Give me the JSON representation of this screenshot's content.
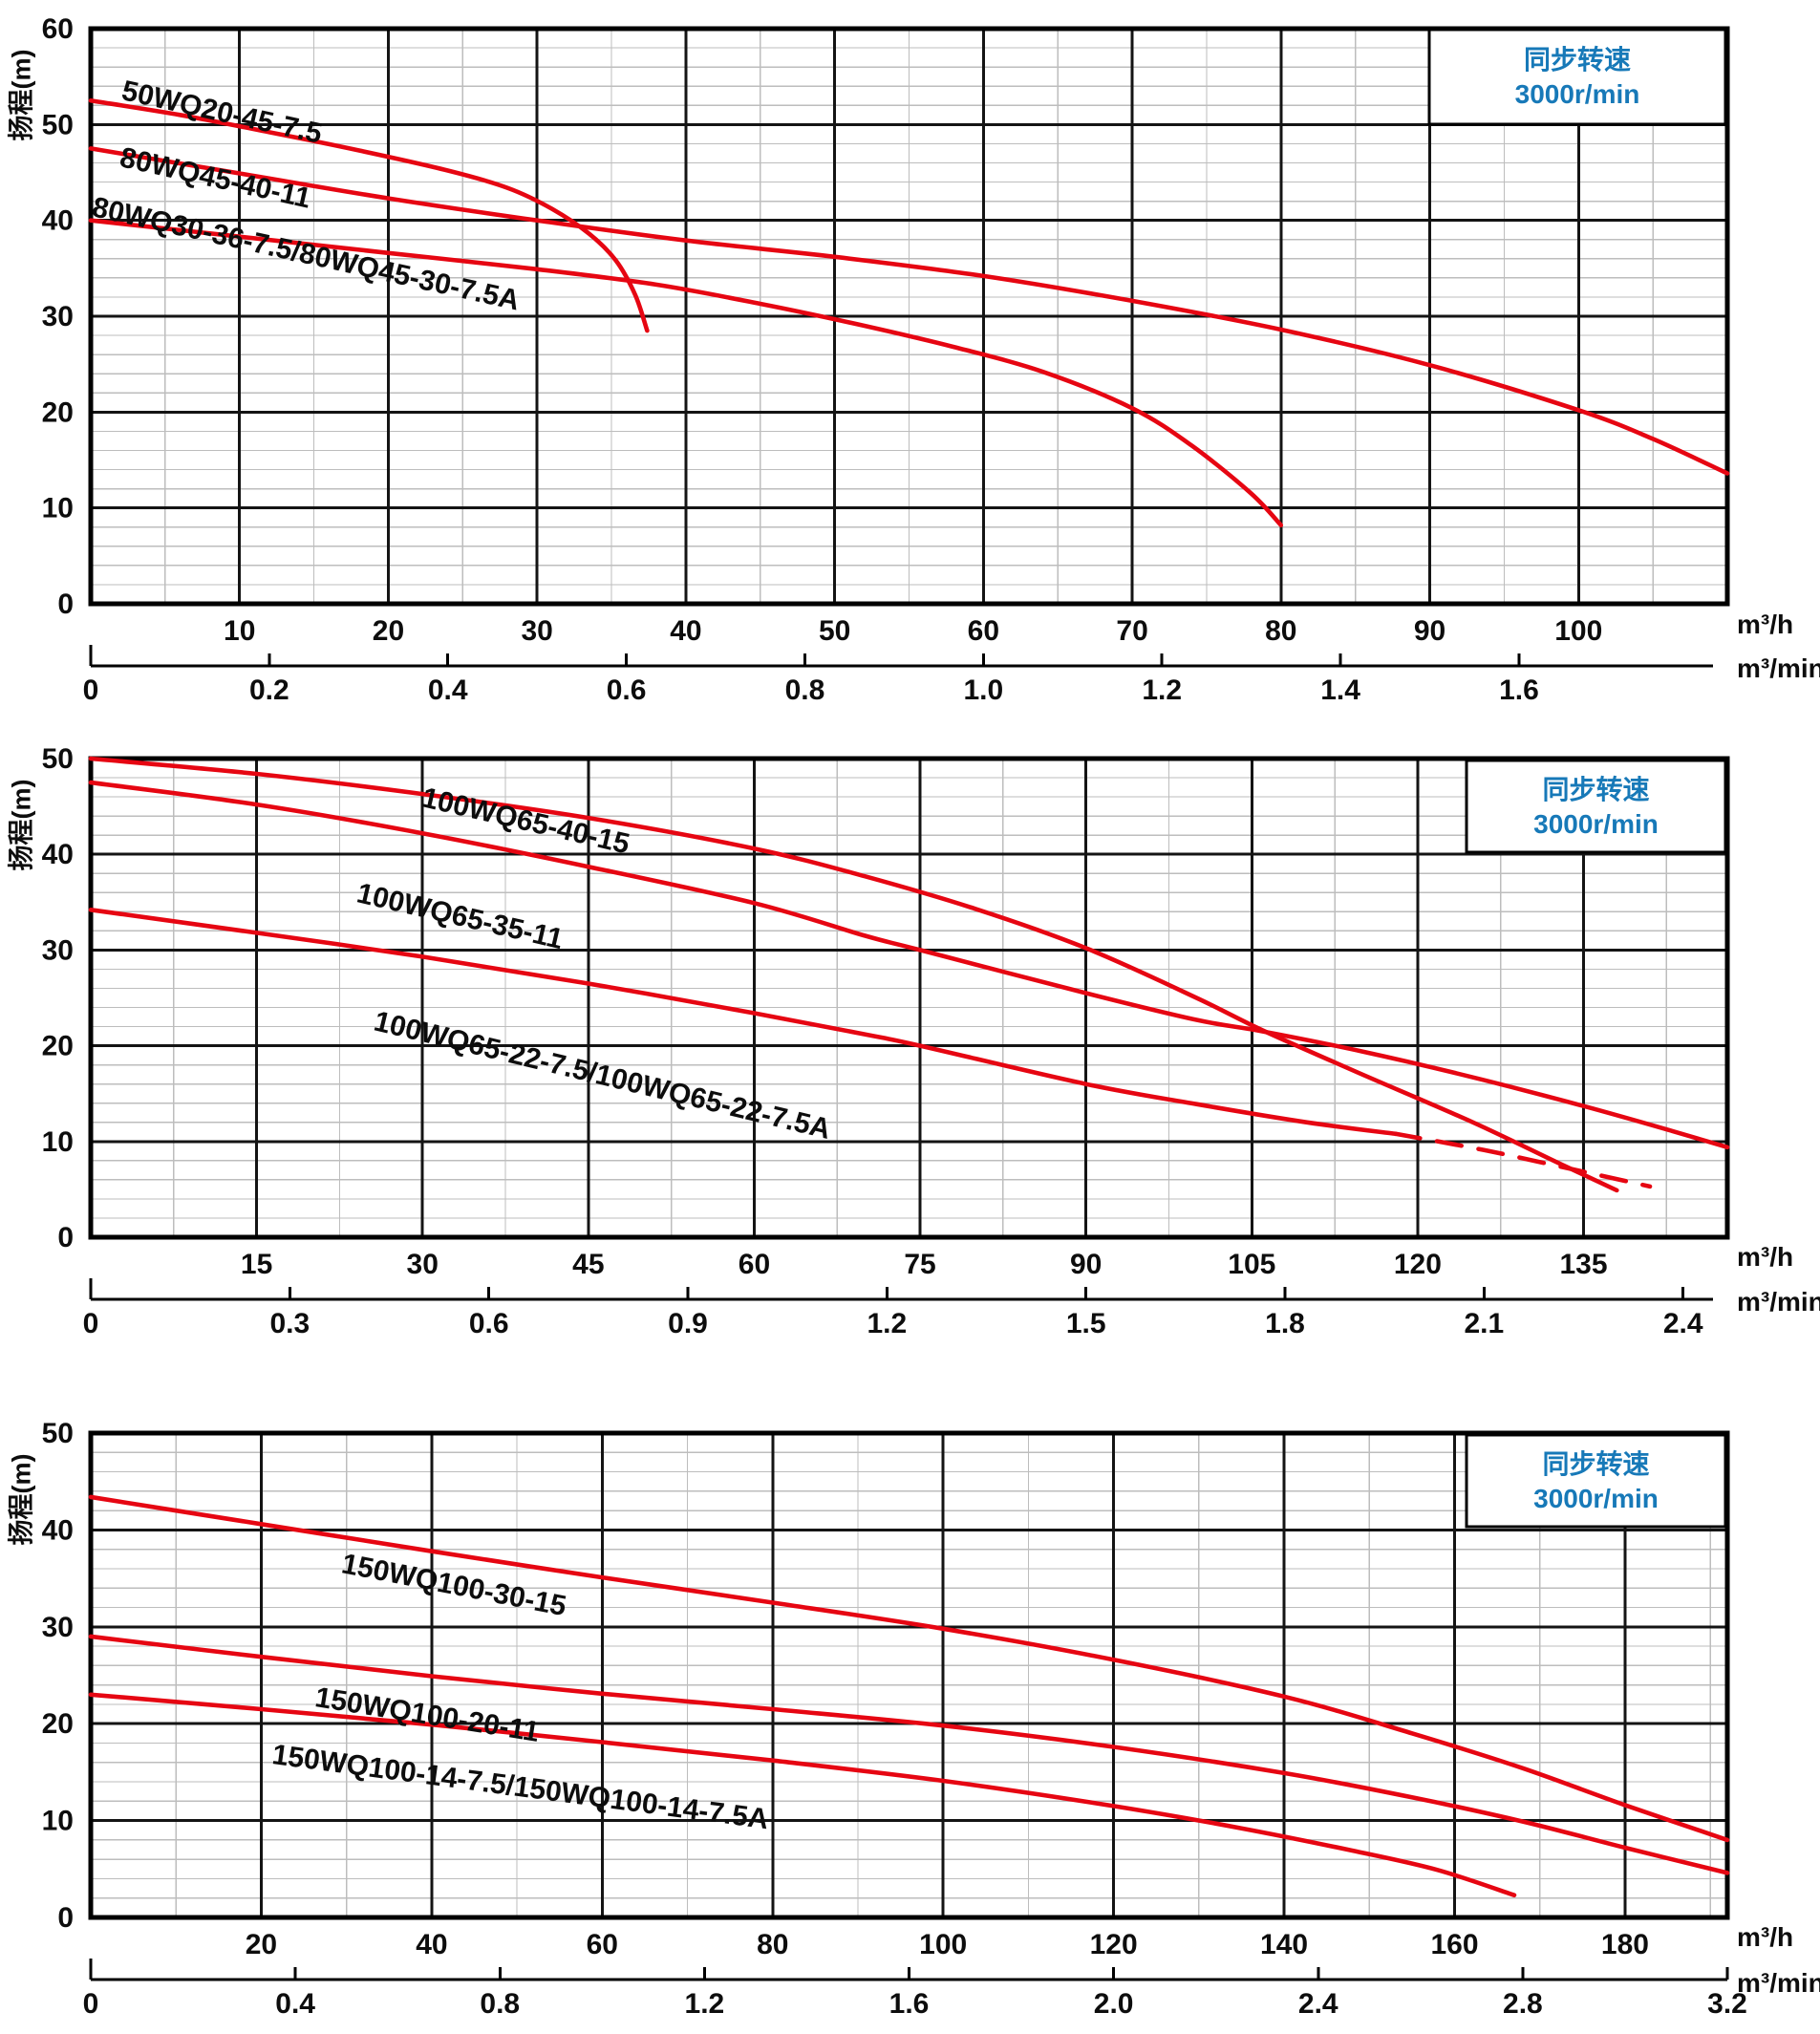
{
  "colors": {
    "curve": "#e60612",
    "speed_text": "#1779b8",
    "grid_major": "#141414",
    "grid_minor": "#bdbdbd",
    "border": "#000000",
    "tick_text": "#0d0d0d"
  },
  "chart_data": [
    {
      "type": "line",
      "y_axis_title": "扬程(m)",
      "speed_note": {
        "line1": "同步转速",
        "line2": "3000r/min"
      },
      "units": {
        "flow_per_hour": "m³/h",
        "flow_per_minute": "m³/min"
      },
      "ylim": [
        0,
        60
      ],
      "xlim_m3h": [
        0,
        110
      ],
      "y_ticks": [
        0,
        10,
        20,
        30,
        40,
        50,
        60
      ],
      "x_ticks_m3h": [
        10,
        20,
        30,
        40,
        50,
        60,
        70,
        80,
        90,
        100
      ],
      "x_ticks_m3min": [
        "0",
        "0.2",
        "0.4",
        "0.6",
        "0.8",
        "1.0",
        "1.2",
        "1.4",
        "1.6"
      ],
      "x_major_step": 10,
      "x_minor_step": 5,
      "y_major_step": 10,
      "y_minor_step": 2,
      "curves": [
        {
          "label": "50WQ20-45-7.5",
          "points": [
            [
              0,
              52.5
            ],
            [
              6,
              51
            ],
            [
              12,
              49.2
            ],
            [
              18,
              47.3
            ],
            [
              24,
              45.2
            ],
            [
              28,
              43.4
            ],
            [
              31,
              41.2
            ],
            [
              33.5,
              38.6
            ],
            [
              35.3,
              35.8
            ],
            [
              36.6,
              32.2
            ],
            [
              37.4,
              28.5
            ]
          ]
        },
        {
          "label": "80WQ45-40-11",
          "points": [
            [
              0,
              47.5
            ],
            [
              10,
              44.9
            ],
            [
              20,
              42.3
            ],
            [
              30,
              40
            ],
            [
              40,
              37.9
            ],
            [
              50,
              36.2
            ],
            [
              60,
              34.2
            ],
            [
              70,
              31.6
            ],
            [
              80,
              28.6
            ],
            [
              90,
              24.9
            ],
            [
              100,
              20.2
            ],
            [
              105,
              17.2
            ],
            [
              110,
              13.6
            ]
          ]
        },
        {
          "label": "80WQ30-36-7.5/80WQ45-30-7.5A",
          "points": [
            [
              0,
              40
            ],
            [
              10,
              38.3
            ],
            [
              20,
              36.6
            ],
            [
              30,
              34.9
            ],
            [
              38,
              33.3
            ],
            [
              45,
              31.3
            ],
            [
              52,
              29
            ],
            [
              58,
              26.8
            ],
            [
              64,
              24.2
            ],
            [
              70,
              20.4
            ],
            [
              74,
              16.5
            ],
            [
              78,
              11.5
            ],
            [
              80,
              8.2
            ]
          ]
        }
      ]
    },
    {
      "type": "line",
      "y_axis_title": "扬程(m)",
      "speed_note": {
        "line1": "同步转速",
        "line2": "3000r/min"
      },
      "units": {
        "flow_per_hour": "m³/h",
        "flow_per_minute": "m³/min"
      },
      "ylim": [
        0,
        50
      ],
      "xlim_m3h": [
        0,
        148
      ],
      "y_ticks": [
        0,
        10,
        20,
        30,
        40,
        50
      ],
      "x_ticks_m3h": [
        15,
        30,
        45,
        60,
        75,
        90,
        105,
        120,
        135
      ],
      "x_ticks_m3min": [
        "0",
        "0.3",
        "0.6",
        "0.9",
        "1.2",
        "1.5",
        "1.8",
        "2.1",
        "2.4"
      ],
      "x_major_step": 15,
      "x_minor_step": 7.5,
      "y_major_step": 10,
      "y_minor_step": 2,
      "curves": [
        {
          "label": "100WQ65-40-15",
          "points": [
            [
              0,
              50
            ],
            [
              15,
              48.4
            ],
            [
              30,
              46.3
            ],
            [
              45,
              43.8
            ],
            [
              60,
              40.6
            ],
            [
              70,
              37.7
            ],
            [
              80,
              34.3
            ],
            [
              90,
              30.2
            ],
            [
              100,
              25
            ],
            [
              106,
              21.6
            ],
            [
              115,
              17
            ],
            [
              125,
              12
            ],
            [
              133,
              7.6
            ],
            [
              138,
              4.9
            ]
          ]
        },
        {
          "label": "100WQ65-35-11",
          "points": [
            [
              0,
              47.5
            ],
            [
              15,
              45.2
            ],
            [
              30,
              42.2
            ],
            [
              45,
              38.7
            ],
            [
              60,
              34.9
            ],
            [
              70,
              31.5
            ],
            [
              75,
              30
            ],
            [
              90,
              25.5
            ],
            [
              100,
              22.7
            ],
            [
              106,
              21.5
            ],
            [
              115,
              19.4
            ],
            [
              125,
              16.7
            ],
            [
              135,
              13.7
            ],
            [
              143,
              11.1
            ],
            [
              148,
              9.4
            ]
          ]
        },
        {
          "label": "100WQ65-22-7.5/100WQ65-22-7.5A",
          "points": [
            [
              0,
              34.2
            ],
            [
              15,
              31.8
            ],
            [
              30,
              29.3
            ],
            [
              45,
              26.5
            ],
            [
              60,
              23.4
            ],
            [
              70,
              21.2
            ],
            [
              75,
              20
            ],
            [
              90,
              16
            ],
            [
              100,
              13.9
            ],
            [
              110,
              12
            ],
            [
              118,
              10.8
            ]
          ],
          "dashed_tail": [
            [
              118,
              10.8
            ],
            [
              126,
              9.1
            ],
            [
              134,
              7.1
            ],
            [
              141,
              5.3
            ]
          ]
        }
      ]
    },
    {
      "type": "line",
      "y_axis_title": "扬程(m)",
      "speed_note": {
        "line1": "同步转速",
        "line2": "3000r/min"
      },
      "units": {
        "flow_per_hour": "m³/h",
        "flow_per_minute": "m³/min"
      },
      "ylim": [
        0,
        50
      ],
      "xlim_m3h": [
        0,
        192
      ],
      "y_ticks": [
        0,
        10,
        20,
        30,
        40,
        50
      ],
      "x_ticks_m3h": [
        20,
        40,
        60,
        80,
        100,
        120,
        140,
        160,
        180
      ],
      "x_ticks_m3min": [
        "0",
        "0.4",
        "0.8",
        "1.2",
        "1.6",
        "2.0",
        "2.4",
        "2.8",
        "3.2"
      ],
      "x_major_step": 20,
      "x_minor_step": 10,
      "y_major_step": 10,
      "y_minor_step": 2,
      "curves": [
        {
          "label": "150WQ100-30-15",
          "points": [
            [
              0,
              43.4
            ],
            [
              20,
              40.6
            ],
            [
              40,
              37.8
            ],
            [
              60,
              35.1
            ],
            [
              80,
              32.5
            ],
            [
              100,
              29.8
            ],
            [
              120,
              26.6
            ],
            [
              140,
              22.8
            ],
            [
              155,
              19
            ],
            [
              168,
              15.4
            ],
            [
              180,
              11.6
            ],
            [
              192,
              8
            ]
          ]
        },
        {
          "label": "150WQ100-20-11",
          "points": [
            [
              0,
              29
            ],
            [
              20,
              26.9
            ],
            [
              40,
              24.9
            ],
            [
              60,
              23.1
            ],
            [
              80,
              21.5
            ],
            [
              100,
              19.8
            ],
            [
              120,
              17.6
            ],
            [
              140,
              14.9
            ],
            [
              155,
              12.4
            ],
            [
              168,
              9.9
            ],
            [
              180,
              7.2
            ],
            [
              192,
              4.6
            ]
          ]
        },
        {
          "label": "150WQ100-14-7.5/150WQ100-14-7.5A",
          "points": [
            [
              0,
              23
            ],
            [
              20,
              21.5
            ],
            [
              40,
              19.9
            ],
            [
              60,
              18.1
            ],
            [
              80,
              16.2
            ],
            [
              100,
              14.1
            ],
            [
              120,
              11.5
            ],
            [
              135,
              9.2
            ],
            [
              148,
              6.9
            ],
            [
              158,
              4.9
            ],
            [
              167,
              2.3
            ]
          ]
        }
      ]
    }
  ]
}
